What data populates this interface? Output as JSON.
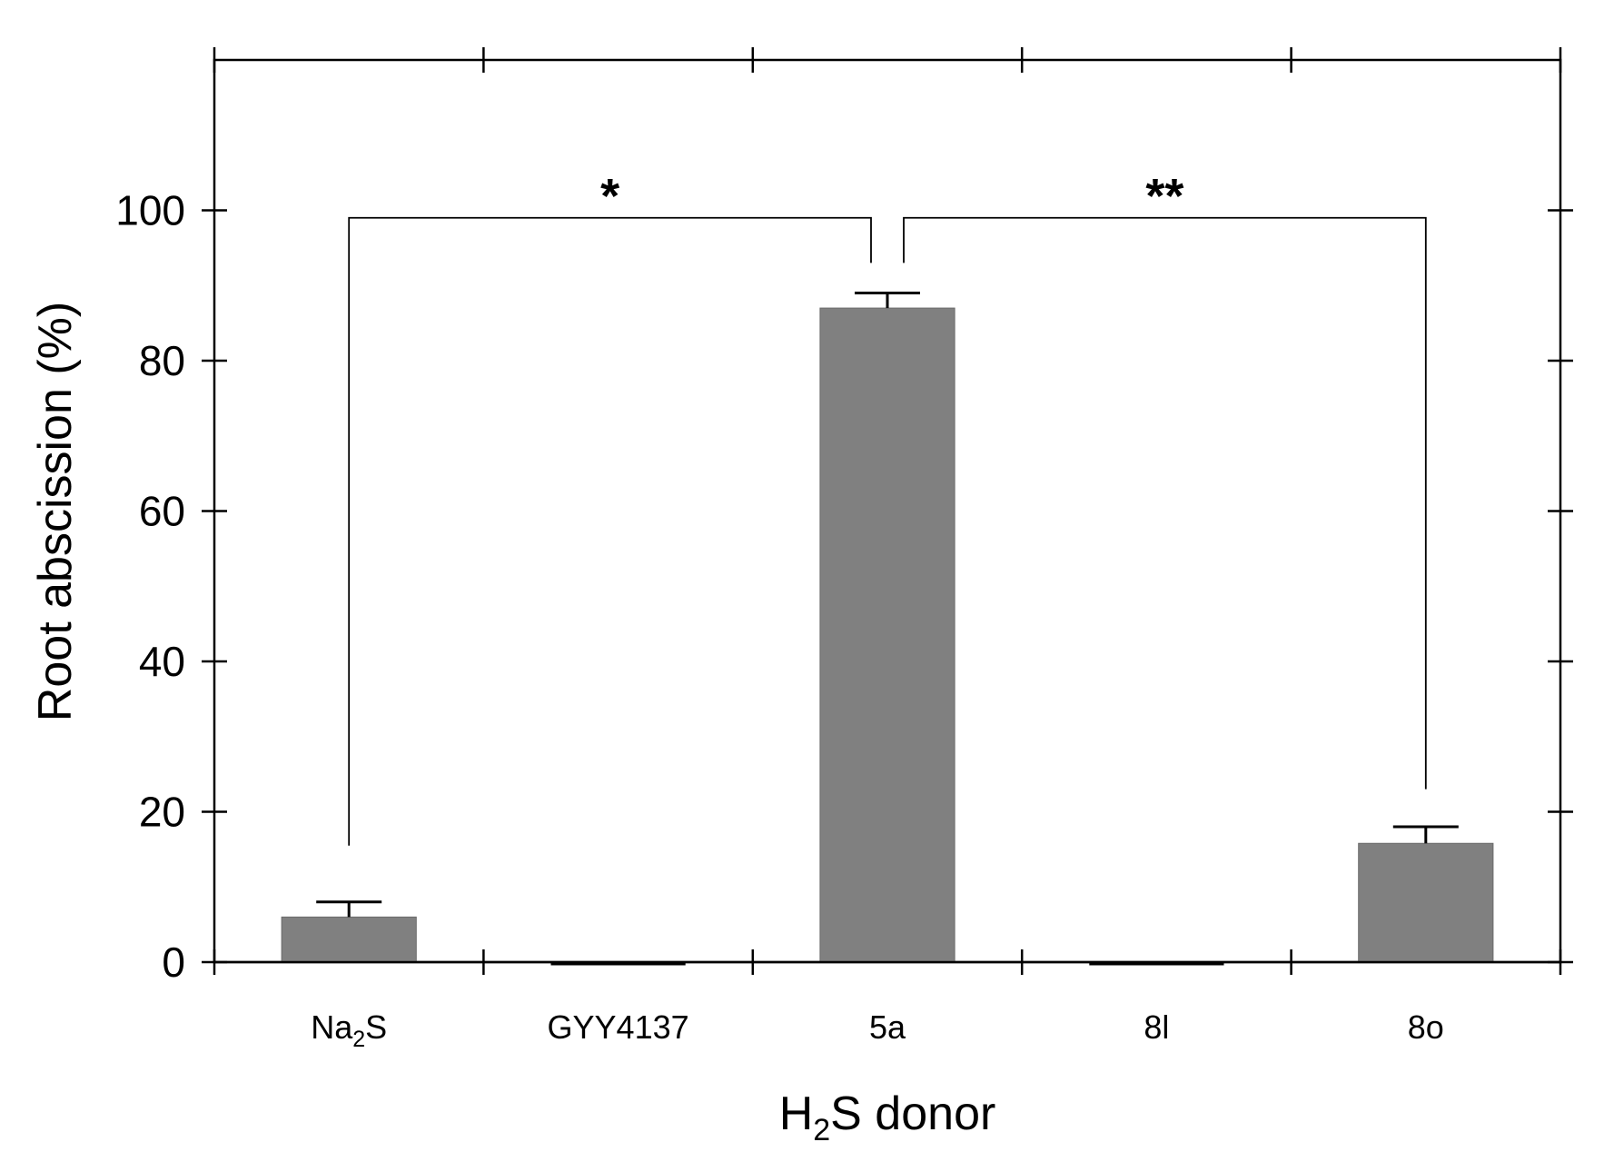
{
  "chart_data": {
    "type": "bar",
    "categories": [
      {
        "main": "Na",
        "sub": "2",
        "tail": "S"
      },
      {
        "main": "GYY4137",
        "sub": "",
        "tail": ""
      },
      {
        "main": "5a",
        "sub": "",
        "tail": ""
      },
      {
        "main": "8l",
        "sub": "",
        "tail": ""
      },
      {
        "main": "8o",
        "sub": "",
        "tail": ""
      }
    ],
    "values": [
      6,
      0,
      87,
      0,
      15.8
    ],
    "errors": [
      2,
      0,
      2,
      0,
      2.2
    ],
    "ylabel": "Root abscission (%)",
    "xlabel": {
      "main": "H",
      "sub": "2",
      "tail": "S donor"
    },
    "ylim": [
      0,
      120
    ],
    "yticks": [
      0,
      20,
      40,
      60,
      80,
      100
    ],
    "bar_color": "#808080",
    "significance": [
      {
        "from": 0,
        "to": 2,
        "label": "*"
      },
      {
        "from": 2,
        "to": 4,
        "label": "**"
      }
    ],
    "grid": false
  }
}
